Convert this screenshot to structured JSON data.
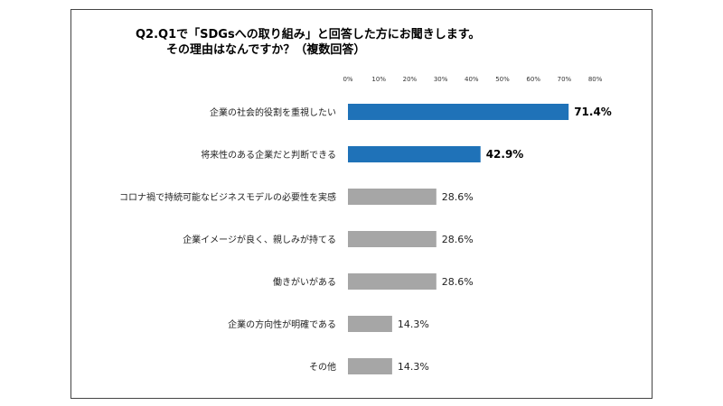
{
  "chart_data": {
    "type": "bar",
    "orientation": "horizontal",
    "title_line1": "Q2.Q1で「SDGsへの取り組み」と回答した方にお聞きします。",
    "title_line2": "その理由はなんですか？（複数回答）",
    "xlim": [
      0,
      80
    ],
    "ticks": [
      "0%",
      "10%",
      "20%",
      "30%",
      "40%",
      "50%",
      "60%",
      "70%",
      "80%"
    ],
    "categories": [
      "企業の社会的役割を重視したい",
      "将来性のある企業だと判断できる",
      "コロナ禍で持続可能なビジネスモデルの必要性を実感",
      "企業イメージが良く、親しみが持てる",
      "働きがいがある",
      "企業の方向性が明確である",
      "その他"
    ],
    "values": [
      71.4,
      42.9,
      28.6,
      28.6,
      28.6,
      14.3,
      14.3
    ],
    "value_labels": [
      "71.4%",
      "42.9%",
      "28.6%",
      "28.6%",
      "28.6%",
      "14.3%",
      "14.3%"
    ],
    "highlight": [
      true,
      true,
      false,
      false,
      false,
      false,
      false
    ],
    "colors": {
      "highlight": "#1f72b8",
      "normal": "#a6a6a6"
    },
    "grid": false
  }
}
